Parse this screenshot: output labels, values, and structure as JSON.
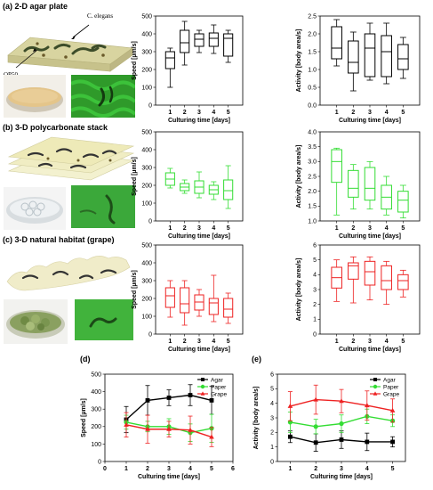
{
  "panels": {
    "a": {
      "label": "(a) 2-D agar plate",
      "annot_celegans": "C. elegans",
      "annot_op50": "OP50"
    },
    "b": {
      "label": "(b) 3-D polycarbonate stack"
    },
    "c": {
      "label": "(c) 3-D natural habitat (grape)"
    },
    "d": {
      "label": "(d)"
    },
    "e": {
      "label": "(e)"
    }
  },
  "colors": {
    "agar": "#000000",
    "paper": "#33dd33",
    "grape": "#ee2222"
  },
  "chart_data": [
    {
      "id": "a-speed",
      "type": "box",
      "color": "#000000",
      "xlabel": "Culturing time [days]",
      "ylabel": "Speed [µm/s]",
      "categories": [
        1,
        2,
        3,
        4,
        5
      ],
      "ylim": [
        0,
        500
      ],
      "yticks": [
        0,
        100,
        200,
        300,
        400,
        500
      ],
      "boxes": [
        {
          "min": 100,
          "q1": 205,
          "median": 265,
          "q3": 300,
          "max": 320
        },
        {
          "min": 225,
          "q1": 295,
          "median": 350,
          "q3": 420,
          "max": 470
        },
        {
          "min": 295,
          "q1": 330,
          "median": 370,
          "q3": 400,
          "max": 420
        },
        {
          "min": 290,
          "q1": 330,
          "median": 375,
          "q3": 405,
          "max": 450
        },
        {
          "min": 240,
          "q1": 275,
          "median": 375,
          "q3": 400,
          "max": 420
        }
      ]
    },
    {
      "id": "a-activity",
      "type": "box",
      "color": "#000000",
      "xlabel": "Culturing time [days]",
      "ylabel": "Activity [body area/s]",
      "categories": [
        1,
        2,
        3,
        4,
        5
      ],
      "ylim": [
        0,
        2.5
      ],
      "yticks": [
        0.0,
        0.5,
        1.0,
        1.5,
        2.0,
        2.5
      ],
      "boxes": [
        {
          "min": 1.1,
          "q1": 1.3,
          "median": 1.6,
          "q3": 2.2,
          "max": 2.4
        },
        {
          "min": 0.4,
          "q1": 0.9,
          "median": 1.2,
          "q3": 1.8,
          "max": 2.05
        },
        {
          "min": 0.7,
          "q1": 0.8,
          "median": 1.6,
          "q3": 2.0,
          "max": 2.3
        },
        {
          "min": 0.6,
          "q1": 0.8,
          "median": 1.5,
          "q3": 1.95,
          "max": 2.3
        },
        {
          "min": 0.75,
          "q1": 1.0,
          "median": 1.3,
          "q3": 1.7,
          "max": 1.9
        }
      ]
    },
    {
      "id": "b-speed",
      "type": "box",
      "color": "#33dd33",
      "xlabel": "Culturing time [days]",
      "ylabel": "Speed [µm/s]",
      "categories": [
        1,
        2,
        3,
        4,
        5
      ],
      "ylim": [
        0,
        500
      ],
      "yticks": [
        0,
        100,
        200,
        300,
        400,
        500
      ],
      "boxes": [
        {
          "min": 185,
          "q1": 200,
          "median": 235,
          "q3": 270,
          "max": 295
        },
        {
          "min": 155,
          "q1": 170,
          "median": 190,
          "q3": 210,
          "max": 230
        },
        {
          "min": 130,
          "q1": 155,
          "median": 190,
          "q3": 225,
          "max": 275
        },
        {
          "min": 120,
          "q1": 150,
          "median": 175,
          "q3": 200,
          "max": 220
        },
        {
          "min": 70,
          "q1": 120,
          "median": 170,
          "q3": 230,
          "max": 310
        }
      ]
    },
    {
      "id": "b-activity",
      "type": "box",
      "color": "#33dd33",
      "xlabel": "Culturing time [days]",
      "ylabel": "Activity [body area/s]",
      "categories": [
        1,
        2,
        3,
        4,
        5
      ],
      "ylim": [
        1.0,
        4.0
      ],
      "yticks": [
        1.0,
        1.5,
        2.0,
        2.5,
        3.0,
        3.5,
        4.0
      ],
      "boxes": [
        {
          "min": 1.2,
          "q1": 2.3,
          "median": 3.0,
          "q3": 3.4,
          "max": 3.45
        },
        {
          "min": 1.4,
          "q1": 1.8,
          "median": 2.1,
          "q3": 2.7,
          "max": 2.9
        },
        {
          "min": 1.4,
          "q1": 1.7,
          "median": 2.1,
          "q3": 2.8,
          "max": 3.0
        },
        {
          "min": 1.2,
          "q1": 1.4,
          "median": 1.8,
          "q3": 2.2,
          "max": 2.5
        },
        {
          "min": 1.1,
          "q1": 1.3,
          "median": 1.7,
          "q3": 2.0,
          "max": 2.2
        }
      ]
    },
    {
      "id": "c-speed",
      "type": "box",
      "color": "#ee2222",
      "xlabel": "Culturing time [days]",
      "ylabel": "Speed [µm/s]",
      "categories": [
        1,
        2,
        3,
        4,
        5
      ],
      "ylim": [
        0,
        500
      ],
      "yticks": [
        0,
        100,
        200,
        300,
        400,
        500
      ],
      "boxes": [
        {
          "min": 95,
          "q1": 150,
          "median": 215,
          "q3": 260,
          "max": 300
        },
        {
          "min": 50,
          "q1": 120,
          "median": 170,
          "q3": 260,
          "max": 300
        },
        {
          "min": 100,
          "q1": 135,
          "median": 180,
          "q3": 220,
          "max": 250
        },
        {
          "min": 70,
          "q1": 110,
          "median": 175,
          "q3": 200,
          "max": 330
        },
        {
          "min": 60,
          "q1": 95,
          "median": 140,
          "q3": 200,
          "max": 230
        }
      ]
    },
    {
      "id": "c-activity",
      "type": "box",
      "color": "#ee2222",
      "xlabel": "Culturing time [days]",
      "ylabel": "Activity [body area/s]",
      "categories": [
        1,
        2,
        3,
        4,
        5
      ],
      "ylim": [
        0,
        6
      ],
      "yticks": [
        0,
        1,
        2,
        3,
        4,
        5,
        6
      ],
      "boxes": [
        {
          "min": 2.2,
          "q1": 3.1,
          "median": 3.8,
          "q3": 4.5,
          "max": 5.0
        },
        {
          "min": 2.1,
          "q1": 3.7,
          "median": 4.6,
          "q3": 4.8,
          "max": 5.2
        },
        {
          "min": 2.3,
          "q1": 3.3,
          "median": 4.2,
          "q3": 4.9,
          "max": 5.2
        },
        {
          "min": 2.0,
          "q1": 3.0,
          "median": 3.6,
          "q3": 4.6,
          "max": 4.9
        },
        {
          "min": 2.5,
          "q1": 3.0,
          "median": 3.6,
          "q3": 4.0,
          "max": 4.3
        }
      ]
    },
    {
      "id": "d-speed",
      "type": "line",
      "xlabel": "Culturing time [days]",
      "ylabel": "Speed [µm/s]",
      "xlim": [
        0,
        6
      ],
      "xticks": [
        0,
        1,
        2,
        3,
        4,
        5,
        6
      ],
      "ylim": [
        0,
        500
      ],
      "yticks": [
        0,
        100,
        200,
        300,
        400,
        500
      ],
      "legend_position": "top-right",
      "x": [
        1,
        2,
        3,
        4,
        5
      ],
      "series": [
        {
          "name": "Agar",
          "color": "#000000",
          "marker": "square",
          "values": [
            240,
            350,
            365,
            380,
            350
          ],
          "errors": [
            75,
            85,
            45,
            60,
            80
          ]
        },
        {
          "name": "Paper",
          "color": "#33dd33",
          "marker": "circle",
          "values": [
            225,
            200,
            200,
            165,
            190
          ],
          "errors": [
            40,
            30,
            45,
            50,
            80
          ]
        },
        {
          "name": "Grape",
          "color": "#ee2222",
          "marker": "triangle",
          "values": [
            210,
            185,
            185,
            180,
            140
          ],
          "errors": [
            70,
            80,
            45,
            80,
            55
          ]
        }
      ]
    },
    {
      "id": "e-activity",
      "type": "line",
      "xlabel": "Culturing time [days]",
      "ylabel": "Activity [body area/s]",
      "xlim": [
        0.5,
        5.5
      ],
      "xticks": [
        1,
        2,
        3,
        4,
        5
      ],
      "ylim": [
        0,
        6
      ],
      "yticks": [
        0,
        1,
        2,
        3,
        4,
        5,
        6
      ],
      "legend_position": "top-right",
      "x": [
        1,
        2,
        3,
        4,
        5
      ],
      "series": [
        {
          "name": "Agar",
          "color": "#000000",
          "marker": "square",
          "values": [
            1.7,
            1.3,
            1.5,
            1.35,
            1.35
          ],
          "errors": [
            0.4,
            0.6,
            0.6,
            0.6,
            0.35
          ]
        },
        {
          "name": "Paper",
          "color": "#33dd33",
          "marker": "circle",
          "values": [
            2.7,
            2.4,
            2.6,
            3.1,
            2.8
          ],
          "errors": [
            0.7,
            0.5,
            0.6,
            0.5,
            0.4
          ]
        },
        {
          "name": "Grape",
          "color": "#ee2222",
          "marker": "triangle",
          "values": [
            3.8,
            4.25,
            4.15,
            3.85,
            3.5
          ],
          "errors": [
            1.0,
            1.0,
            0.8,
            1.0,
            0.8
          ]
        }
      ]
    }
  ]
}
